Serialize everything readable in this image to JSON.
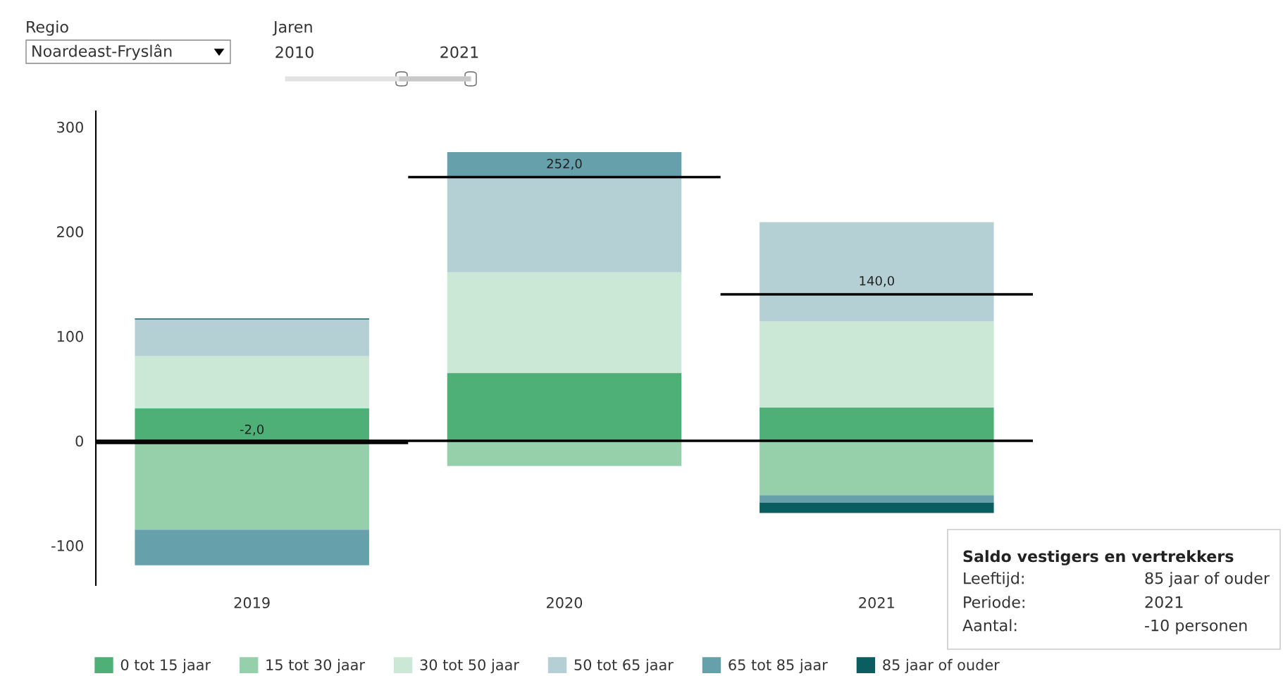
{
  "chart_data": {
    "type": "bar",
    "stacked": true,
    "categories": [
      "2019",
      "2020",
      "2021"
    ],
    "series": [
      {
        "name": "0 tot 15 jaar",
        "color": "#4eb077",
        "values": [
          31,
          65,
          32
        ]
      },
      {
        "name": "15 tot 30 jaar",
        "color": "#95d0ab",
        "values": [
          -85,
          -24,
          -52
        ]
      },
      {
        "name": "30 tot 50 jaar",
        "color": "#cbe7d5",
        "values": [
          50,
          96,
          82
        ]
      },
      {
        "name": "50 tot 65 jaar",
        "color": "#b4d0d4",
        "values": [
          35,
          90,
          95
        ]
      },
      {
        "name": "65 tot 85 jaar",
        "color": "#66a0aa",
        "values": [
          -34,
          25,
          -7
        ]
      },
      {
        "name": "85 jaar of ouder",
        "color": "#0b5e60",
        "values": [
          1,
          0,
          -10
        ]
      }
    ],
    "ylim": [
      -138,
      315
    ],
    "yticks": [
      -100,
      0,
      100,
      200,
      300
    ],
    "grid": false,
    "legend": "bottom",
    "ref_lines": [
      {
        "axis": "y",
        "value": 0,
        "color": "#000000"
      },
      {
        "axis": "y",
        "value": -2,
        "label": "-2,0",
        "color": "#000000"
      },
      {
        "axis": "y",
        "value": 252,
        "label": "252,0",
        "color": "#000000"
      },
      {
        "axis": "y",
        "value": 140,
        "label": "140,0",
        "color": "#000000"
      }
    ],
    "annotations": [
      "Regio",
      "Noardeast-Fryslân",
      "Jaren",
      "2010",
      "2021",
      "Saldo vestigers en vertrekkers",
      "Leeftijd:",
      "85 jaar of ouder",
      "Periode:",
      "2021",
      "Aantal:",
      "-10 personen"
    ]
  }
}
